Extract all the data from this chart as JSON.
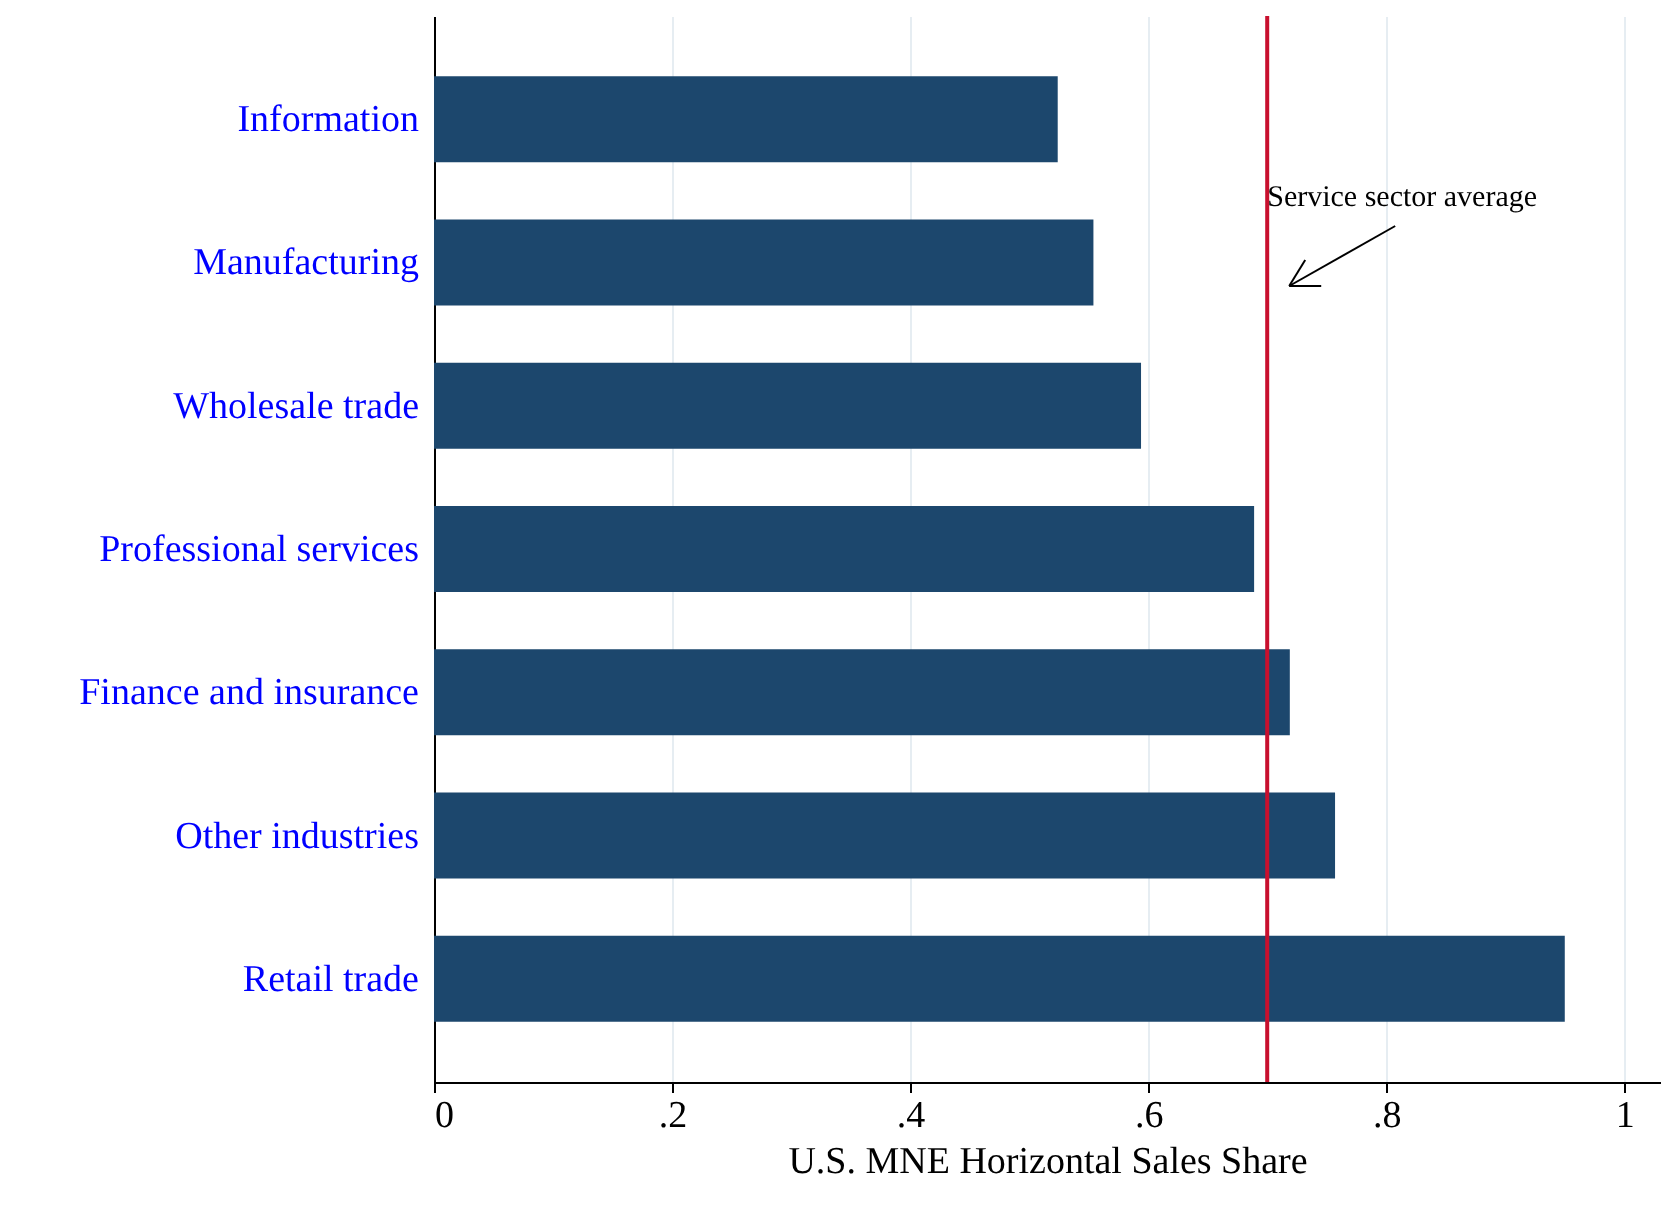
{
  "chart_data": {
    "type": "bar",
    "orientation": "horizontal",
    "categories": [
      "Information",
      "Manufacturing",
      "Wholesale trade",
      "Professional services",
      "Finance and insurance",
      "Other industries",
      "Retail trade"
    ],
    "values": [
      0.524,
      0.554,
      0.594,
      0.689,
      0.719,
      0.757,
      0.95
    ],
    "color": "#1c476d",
    "xlabel": "U.S. MNE Horizontal Sales Share",
    "xlim": [
      0,
      1.03
    ],
    "xticks": [
      {
        "value": 0,
        "label": "0"
      },
      {
        "value": 0.2,
        "label": ".2"
      },
      {
        "value": 0.4,
        "label": ".4"
      },
      {
        "value": 0.6,
        "label": ".6"
      },
      {
        "value": 0.8,
        "label": ".8"
      },
      {
        "value": 1,
        "label": "1"
      }
    ],
    "grid": "x",
    "ref_lines": [
      {
        "axis": "x",
        "value": 0.7,
        "label": "Service sector average",
        "color": "#c8102e"
      }
    ]
  }
}
